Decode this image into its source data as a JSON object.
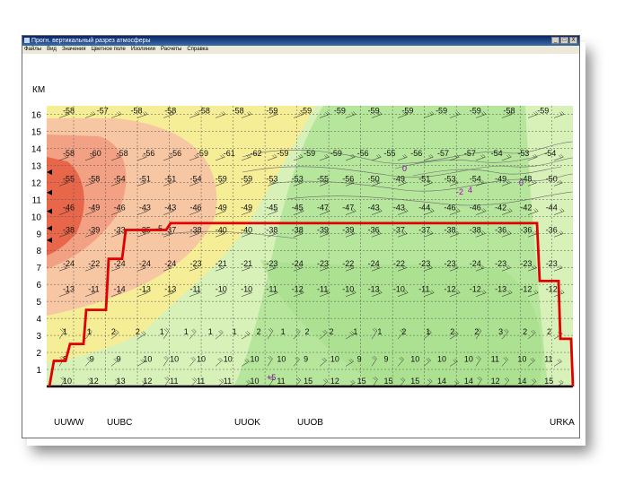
{
  "window": {
    "title": "Прогн. вертикальный разрез атмосферы",
    "buttons": [
      "_",
      "□",
      "X"
    ]
  },
  "menu": [
    "Файлы",
    "Вид",
    "Значения",
    "Цветное поле",
    "Изолинии",
    "Расчеты",
    "Справка"
  ],
  "chart_data": {
    "type": "heatmap",
    "ylabel": "КМ",
    "y_ticks": [
      1,
      2,
      3,
      4,
      5,
      6,
      7,
      8,
      9,
      10,
      11,
      12,
      13,
      14,
      15,
      16
    ],
    "ylim": [
      0,
      16.5
    ],
    "stations": [
      {
        "name": "UUWW",
        "x": 0
      },
      {
        "name": "UUBC",
        "x": 1.4
      },
      {
        "name": "UUOK",
        "x": 5.6
      },
      {
        "name": "UUOB",
        "x": 7.7
      },
      {
        "name": "URKA",
        "x": 15.6
      }
    ],
    "columns": 15,
    "temperature_rows": [
      {
        "km": 16,
        "values": [
          "-58",
          "-57",
          "-58",
          "-58",
          "-58",
          "-58",
          "-59",
          "-59",
          "-59",
          "-59",
          "-59",
          "-59",
          "-59",
          "-58",
          "-59"
        ]
      },
      {
        "km": 13.5,
        "values": [
          "-58",
          "-60",
          "-58",
          "-56",
          "-56",
          "-59",
          "-61",
          "-62",
          "-59",
          "-59",
          "-59",
          "-56",
          "-55",
          "-56",
          "-57",
          "-57",
          "-54",
          "-53",
          "-54"
        ]
      },
      {
        "km": 12,
        "values": [
          "-55",
          "-58",
          "-54",
          "-51",
          "-51",
          "-54",
          "-59",
          "-59",
          "-53",
          "-53",
          "-55",
          "-56",
          "-50",
          "-49",
          "-51",
          "-53",
          "-54",
          "-49",
          "-48",
          "-50"
        ]
      },
      {
        "km": 10.3,
        "values": [
          "-46",
          "-49",
          "-46",
          "-43",
          "-43",
          "-46",
          "-49",
          "-49",
          "-45",
          "-45",
          "-47",
          "-47",
          "-43",
          "-43",
          "-44",
          "-46",
          "-46",
          "-42",
          "-42",
          "-44"
        ]
      },
      {
        "km": 9,
        "values": [
          "-38",
          "-39",
          "-33",
          "-35",
          "-37",
          "-38",
          "-40",
          "-40",
          "-38",
          "-38",
          "-39",
          "-39",
          "-36",
          "-37",
          "-37",
          "-38",
          "-38",
          "-36",
          "-36",
          "-36"
        ]
      },
      {
        "km": 7,
        "values": [
          "-24",
          "-22",
          "-24",
          "-24",
          "-24",
          "-23",
          "-21",
          "-21",
          "-23",
          "-24",
          "-23",
          "-22",
          "-24",
          "-22",
          "-23",
          "-23",
          "-24",
          "-23",
          "-23",
          "-23"
        ]
      },
      {
        "km": 5.5,
        "values": [
          "-13",
          "-11",
          "-14",
          "-13",
          "-13",
          "-11",
          "-10",
          "-10",
          "-11",
          "-12",
          "-11",
          "-10",
          "-13",
          "-10",
          "-11",
          "-12",
          "-12",
          "-13",
          "-12",
          "-12"
        ]
      },
      {
        "km": 3,
        "values": [
          "1",
          "1",
          "2",
          "2",
          "1",
          "1",
          "1",
          "1",
          "2",
          "1",
          "2",
          "2",
          "1",
          "1",
          "2",
          "1",
          "2",
          "2",
          "3",
          "2",
          "2"
        ]
      },
      {
        "km": 1.4,
        "values": [
          "8",
          "9",
          "9",
          "10",
          "10",
          "10",
          "10",
          "10",
          "10",
          "9",
          "10",
          "9",
          "9",
          "10",
          "10",
          "10",
          "11",
          "10",
          "11"
        ]
      },
      {
        "km": 0.1,
        "values": [
          "10",
          "12",
          "13",
          "12",
          "11",
          "11",
          "11",
          "10",
          "11",
          "15",
          "12",
          "15",
          "15",
          "15",
          "14",
          "14",
          "12",
          "14",
          "15"
        ]
      }
    ],
    "annotations": [
      "+5",
      "0",
      "0",
      "-2",
      "4",
      "-5"
    ],
    "tropopause_km": [
      0,
      1.5,
      1.5,
      2.5,
      2.5,
      4.5,
      4.5,
      7.5,
      7.5,
      9.2,
      9.2,
      9.2,
      9.2,
      9.6,
      9.6,
      9.6,
      9.6,
      6.2,
      6.2,
      2.8,
      2.8,
      0
    ],
    "colors": {
      "red": "#e8664a",
      "salmon": "#f3a184",
      "peach": "#f7c6a3",
      "yellow": "#f6ee96",
      "light_green": "#d8f1b8",
      "green": "#b5e69b",
      "tropopause_line": "#e00000"
    }
  }
}
